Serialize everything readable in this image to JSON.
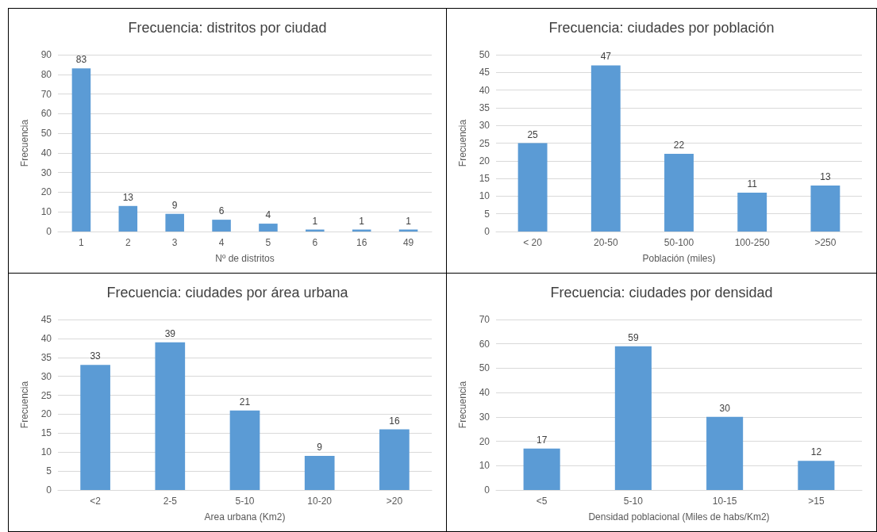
{
  "chart_data": [
    {
      "type": "bar",
      "title": "Frecuencia: distritos por ciudad",
      "xlabel": "Nº de distritos",
      "ylabel": "Frecuencia",
      "categories": [
        "1",
        "2",
        "3",
        "4",
        "5",
        "6",
        "16",
        "49"
      ],
      "values": [
        83,
        13,
        9,
        6,
        4,
        1,
        1,
        1
      ],
      "color": "#5b9bd5",
      "ylim": [
        0,
        90
      ],
      "yticks": [
        0,
        10,
        20,
        30,
        40,
        50,
        60,
        70,
        80,
        90
      ],
      "grid": "y",
      "data_labels": true
    },
    {
      "type": "bar",
      "title": "Frecuencia: ciudades por población",
      "xlabel": "Población (miles)",
      "ylabel": "Frecuencia",
      "categories": [
        "< 20",
        "20-50",
        "50-100",
        "100-250",
        ">250"
      ],
      "values": [
        25,
        47,
        22,
        11,
        13
      ],
      "color": "#5b9bd5",
      "ylim": [
        0,
        50
      ],
      "yticks": [
        0,
        5,
        10,
        15,
        20,
        25,
        30,
        35,
        40,
        45,
        50
      ],
      "grid": "y",
      "data_labels": true
    },
    {
      "type": "bar",
      "title": "Frecuencia: ciudades por área urbana",
      "xlabel": "Area urbana (Km2)",
      "ylabel": "Frecuencia",
      "categories": [
        "<2",
        "2-5",
        "5-10",
        "10-20",
        ">20"
      ],
      "values": [
        33,
        39,
        21,
        9,
        16
      ],
      "color": "#5b9bd5",
      "ylim": [
        0,
        45
      ],
      "yticks": [
        0,
        5,
        10,
        15,
        20,
        25,
        30,
        35,
        40,
        45
      ],
      "grid": "y",
      "data_labels": true
    },
    {
      "type": "bar",
      "title": "Frecuencia: ciudades por densidad",
      "xlabel": "Densidad poblacional (Miles de habs/Km2)",
      "ylabel": "Frecuencia",
      "categories": [
        "<5",
        "5-10",
        "10-15",
        ">15"
      ],
      "values": [
        17,
        59,
        30,
        12
      ],
      "color": "#5b9bd5",
      "ylim": [
        0,
        70
      ],
      "yticks": [
        0,
        10,
        20,
        30,
        40,
        50,
        60,
        70
      ],
      "grid": "y",
      "data_labels": true
    }
  ]
}
